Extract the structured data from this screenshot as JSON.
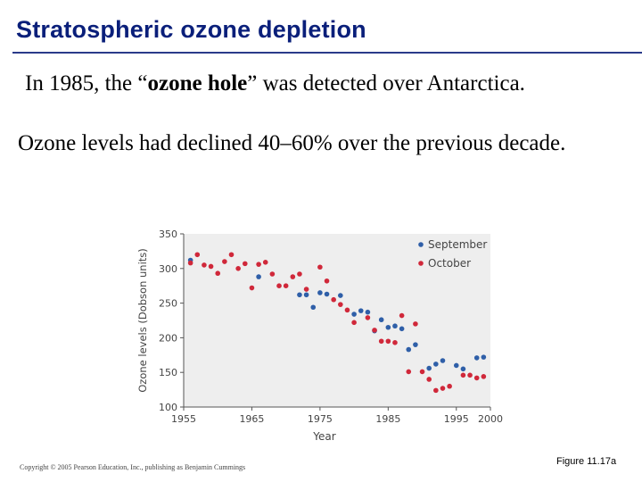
{
  "slide": {
    "title": "Stratospheric ozone depletion",
    "line1_pre": "In 1985, the “",
    "line1_bold": "ozone hole",
    "line1_post": "” was detected over Antarctica.",
    "line2": "Ozone levels had declined 40–60% over the previous decade.",
    "copyright": "Copyright © 2005 Pearson Education, Inc., publishing as Benjamin Cummings",
    "figure_label": "Figure 11.17a"
  },
  "colors": {
    "september": "#2f5fa8",
    "october": "#d0283a",
    "plot_bg": "#eeeeee",
    "axis": "#555555"
  },
  "chart_data": {
    "type": "scatter",
    "title": "",
    "xlabel": "Year",
    "ylabel": "Ozone levels (Dobson units)",
    "xlim": [
      1955,
      2000
    ],
    "ylim": [
      100,
      350
    ],
    "xticks": [
      1955,
      1965,
      1975,
      1985,
      1995,
      2000
    ],
    "yticks": [
      100,
      150,
      200,
      250,
      300,
      350
    ],
    "legend": "top-right",
    "series": [
      {
        "name": "September",
        "points": [
          [
            1956,
            312
          ],
          [
            1966,
            288
          ],
          [
            1972,
            262
          ],
          [
            1973,
            262
          ],
          [
            1974,
            244
          ],
          [
            1975,
            265
          ],
          [
            1976,
            263
          ],
          [
            1978,
            261
          ],
          [
            1980,
            234
          ],
          [
            1981,
            239
          ],
          [
            1982,
            237
          ],
          [
            1983,
            210
          ],
          [
            1984,
            226
          ],
          [
            1985,
            215
          ],
          [
            1986,
            217
          ],
          [
            1987,
            213
          ],
          [
            1988,
            183
          ],
          [
            1989,
            190
          ],
          [
            1991,
            156
          ],
          [
            1992,
            162
          ],
          [
            1993,
            167
          ],
          [
            1995,
            160
          ],
          [
            1996,
            155
          ],
          [
            1998,
            171
          ],
          [
            1999,
            172
          ]
        ]
      },
      {
        "name": "October",
        "points": [
          [
            1956,
            308
          ],
          [
            1957,
            320
          ],
          [
            1958,
            305
          ],
          [
            1959,
            303
          ],
          [
            1960,
            293
          ],
          [
            1961,
            310
          ],
          [
            1962,
            320
          ],
          [
            1963,
            300
          ],
          [
            1964,
            307
          ],
          [
            1965,
            272
          ],
          [
            1966,
            306
          ],
          [
            1967,
            309
          ],
          [
            1968,
            292
          ],
          [
            1969,
            275
          ],
          [
            1970,
            275
          ],
          [
            1971,
            288
          ],
          [
            1972,
            292
          ],
          [
            1973,
            270
          ],
          [
            1975,
            302
          ],
          [
            1976,
            282
          ],
          [
            1977,
            255
          ],
          [
            1978,
            248
          ],
          [
            1979,
            240
          ],
          [
            1980,
            222
          ],
          [
            1982,
            229
          ],
          [
            1983,
            211
          ],
          [
            1984,
            195
          ],
          [
            1985,
            195
          ],
          [
            1986,
            193
          ],
          [
            1987,
            232
          ],
          [
            1988,
            151
          ],
          [
            1989,
            220
          ],
          [
            1990,
            151
          ],
          [
            1991,
            140
          ],
          [
            1992,
            124
          ],
          [
            1993,
            127
          ],
          [
            1994,
            130
          ],
          [
            1996,
            146
          ],
          [
            1997,
            146
          ],
          [
            1998,
            142
          ],
          [
            1999,
            144
          ]
        ]
      }
    ]
  }
}
